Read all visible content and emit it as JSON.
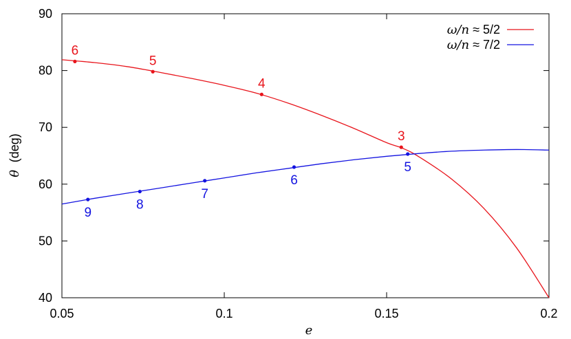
{
  "chart_data": {
    "type": "line",
    "xlabel": "e",
    "ylabel": {
      "symbol": "θ",
      "unit": "(deg)"
    },
    "xlim": [
      0.05,
      0.2
    ],
    "ylim": [
      40,
      90
    ],
    "xticks": [
      "0.05",
      "0.1",
      "0.15",
      "0.2"
    ],
    "yticks": [
      "40",
      "50",
      "60",
      "70",
      "80",
      "90"
    ],
    "grid": false,
    "legend_position": "top-right",
    "series": [
      {
        "name_math": "ω/n",
        "name_rest": " ≈ 5/2",
        "color": "#e8141b",
        "curve": [
          [
            0.05,
            81.9
          ],
          [
            0.06,
            81.4
          ],
          [
            0.07,
            80.7
          ],
          [
            0.08,
            79.7
          ],
          [
            0.09,
            78.6
          ],
          [
            0.1,
            77.4
          ],
          [
            0.11,
            76.0
          ],
          [
            0.12,
            74.2
          ],
          [
            0.13,
            72.1
          ],
          [
            0.14,
            69.8
          ],
          [
            0.15,
            67.3
          ],
          [
            0.155,
            66.3
          ],
          [
            0.16,
            64.8
          ],
          [
            0.17,
            60.9
          ],
          [
            0.18,
            55.7
          ],
          [
            0.19,
            48.8
          ],
          [
            0.2,
            40.0
          ]
        ],
        "points": [
          {
            "x": 0.054,
            "y": 81.6,
            "label": "6"
          },
          {
            "x": 0.078,
            "y": 79.8,
            "label": "5"
          },
          {
            "x": 0.1115,
            "y": 75.8,
            "label": "4"
          },
          {
            "x": 0.1545,
            "y": 66.5,
            "label": "3"
          }
        ]
      },
      {
        "name_math": "ω/n",
        "name_rest": " ≈ 7/2",
        "color": "#1313e0",
        "curve": [
          [
            0.05,
            56.5
          ],
          [
            0.06,
            57.5
          ],
          [
            0.07,
            58.4
          ],
          [
            0.08,
            59.3
          ],
          [
            0.09,
            60.2
          ],
          [
            0.1,
            61.1
          ],
          [
            0.11,
            62.0
          ],
          [
            0.12,
            62.8
          ],
          [
            0.13,
            63.6
          ],
          [
            0.14,
            64.3
          ],
          [
            0.15,
            64.9
          ],
          [
            0.16,
            65.4
          ],
          [
            0.17,
            65.8
          ],
          [
            0.18,
            66.0
          ],
          [
            0.19,
            66.1
          ],
          [
            0.2,
            66.0
          ]
        ],
        "points": [
          {
            "x": 0.058,
            "y": 57.3,
            "label": "9"
          },
          {
            "x": 0.074,
            "y": 58.7,
            "label": "8"
          },
          {
            "x": 0.094,
            "y": 60.6,
            "label": "7"
          },
          {
            "x": 0.1215,
            "y": 63.0,
            "label": "6"
          },
          {
            "x": 0.1565,
            "y": 65.3,
            "label": "5"
          }
        ]
      }
    ]
  }
}
